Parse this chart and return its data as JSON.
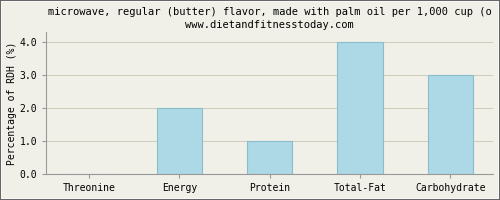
{
  "title_line1": "microwave, regular (butter) flavor, made with palm oil per 1,000 cup (o",
  "title_line2": "www.dietandfitnesstoday.com",
  "categories": [
    "Threonine",
    "Energy",
    "Protein",
    "Total-Fat",
    "Carbohydrate"
  ],
  "values": [
    0.0,
    2.0,
    1.0,
    4.0,
    3.0
  ],
  "bar_color": "#add8e6",
  "bar_edge_color": "#8bbccc",
  "ylabel": "Percentage of RDH (%)",
  "ylim": [
    0,
    4.3
  ],
  "yticks": [
    0.0,
    1.0,
    2.0,
    3.0,
    4.0
  ],
  "background_color": "#f0f0e8",
  "plot_bg_color": "#f0f0e8",
  "grid_color": "#ccccbb",
  "border_color": "#666666",
  "title_fontsize": 7.5,
  "subtitle_fontsize": 7.5,
  "axis_label_fontsize": 7,
  "tick_fontsize": 7
}
